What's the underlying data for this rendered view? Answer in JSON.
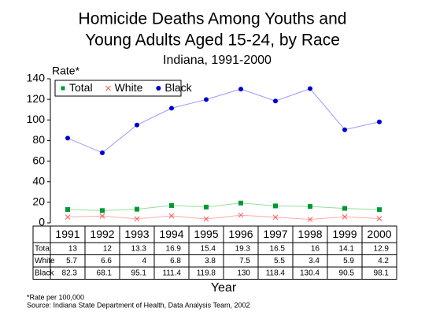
{
  "chart_data": {
    "type": "line",
    "title": "Homicide Deaths Among Youths and",
    "title_line2": "Young Adults Aged 15-24, by Race",
    "subtitle": "Indiana, 1991-2000",
    "y_label": "Rate*",
    "x_label": "Year",
    "footnote": "*Rate per 100,000",
    "source": "Source:  Indiana State Department of Health, Data Analysis Team, 2002",
    "categories": [
      "1991",
      "1992",
      "1993",
      "1994",
      "1995",
      "1996",
      "1997",
      "1998",
      "1999",
      "2000"
    ],
    "series": [
      {
        "name": "Total",
        "color": "#009933",
        "line_color": "#99dd99",
        "marker": "square",
        "values": [
          13,
          12,
          13.3,
          16.9,
          15.4,
          19.3,
          16.5,
          16,
          14.1,
          12.9
        ]
      },
      {
        "name": "White",
        "color": "#ff5555",
        "line_color": "#ffaaaa",
        "marker": "x",
        "values": [
          5.7,
          6.6,
          4,
          6.8,
          3.8,
          7.5,
          5.5,
          3.4,
          5.9,
          4.2
        ]
      },
      {
        "name": "Black",
        "color": "#0000cc",
        "line_color": "#9999ff",
        "marker": "circle",
        "values": [
          82.3,
          68.1,
          95.1,
          111.4,
          119.8,
          130,
          118.4,
          130.4,
          90.5,
          98.1
        ]
      }
    ],
    "ylim": [
      0,
      140
    ],
    "yticks": [
      0,
      20,
      40,
      60,
      80,
      100,
      120,
      140
    ],
    "legend": "top-left"
  }
}
